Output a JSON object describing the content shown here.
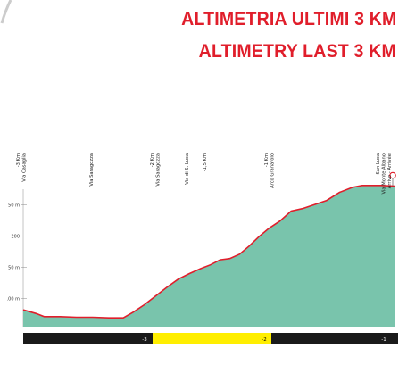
{
  "header": {
    "title_it": "ALTIMETRIA ULTIMI 3 KM",
    "title_en": "ALTIMETRY LAST 3 KM"
  },
  "colors": {
    "title": "#e01e2b",
    "profile_fill": "#79c4ac",
    "profile_line": "#e01e2b",
    "axis_bar": "#1a1a1a",
    "highlight": "#ffee00",
    "km_text_dark": "#ffffff",
    "km_text_light": "#000000"
  },
  "chart_data": {
    "type": "area",
    "title": "ALTIMETRIA ULTIMI 3 KM",
    "xlabel": "",
    "ylabel": "",
    "x_range": [
      -3.18,
      -0.88
    ],
    "y_range": [
      55,
      275
    ],
    "y_ticks": [
      {
        "value": 100,
        "label": ".00 m"
      },
      {
        "value": 150,
        "label": "50 m"
      },
      {
        "value": 200,
        "label": "200"
      },
      {
        "value": 250,
        "label": "50 m"
      }
    ],
    "x": [
      -3.18,
      -3.1,
      -3.05,
      -2.95,
      -2.85,
      -2.75,
      -2.65,
      -2.56,
      -2.5,
      -2.43,
      -2.36,
      -2.29,
      -2.22,
      -2.15,
      -2.08,
      -2.02,
      -1.96,
      -1.9,
      -1.84,
      -1.78,
      -1.72,
      -1.66,
      -1.59,
      -1.52,
      -1.45,
      -1.38,
      -1.3,
      -1.22,
      -1.14,
      -1.08,
      -1.02,
      -0.96,
      -0.88
    ],
    "y": [
      82,
      76,
      71,
      71,
      70,
      70,
      69,
      69,
      78,
      90,
      104,
      118,
      131,
      140,
      148,
      154,
      162,
      164,
      171,
      184,
      199,
      212,
      224,
      240,
      244,
      250,
      257,
      270,
      278,
      281,
      281,
      281,
      280
    ],
    "markers": [
      {
        "x": -3.0,
        "line1": "-3 Km",
        "line2": "Via Casaglia"
      },
      {
        "x": -2.6,
        "line1": "Via Saragozza",
        "line2": ""
      },
      {
        "x": -2.0,
        "line1": "-2 Km",
        "line2": "Via Saragozza"
      },
      {
        "x": -1.75,
        "line1": "Via di S. Luca",
        "line2": ""
      },
      {
        "x": -1.5,
        "line1": "-1,5 Km",
        "line2": ""
      },
      {
        "x": -1.0,
        "line1": "-1 Km",
        "line2": "Arco Granarolo"
      },
      {
        "x": -0.5,
        "line1": "San Luca",
        "line2": "Via Monte Albano",
        "line3": "Arrivo - Arrivée"
      }
    ],
    "km_ticks": [
      {
        "label": "-3",
        "highlight": false
      },
      {
        "label": "-2",
        "highlight": true
      },
      {
        "label": "-1",
        "highlight": false
      }
    ]
  }
}
